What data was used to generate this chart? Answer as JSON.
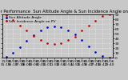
{
  "title": "Solar PV/Inverter Performance  Sun Altitude Angle & Sun Incidence Angle on PV Panels",
  "blue_label": "Sun Altitude Angle",
  "red_label": "Sun Incidence Angle on PV",
  "x_times": [
    "21/06\n05:15",
    "21/06\n06:13",
    "21/06\n07:10",
    "21/06\n08:08",
    "21/06\n09:06",
    "21/06\n10:03",
    "21/06\n11:01",
    "21/06\n11:59",
    "21/06\n12:56",
    "21/06\n13:54",
    "21/06\n14:52",
    "21/06\n15:49",
    "21/06\n16:47",
    "21/06\n17:45",
    "21/06\n18:42",
    "21/06\n19:40"
  ],
  "blue_y": [
    2,
    10,
    22,
    35,
    47,
    57,
    63,
    65,
    63,
    57,
    48,
    36,
    23,
    11,
    3,
    0
  ],
  "red_y": [
    88,
    78,
    67,
    56,
    45,
    36,
    30,
    28,
    30,
    36,
    44,
    56,
    67,
    77,
    87,
    90
  ],
  "ylim": [
    0,
    90
  ],
  "yticks": [
    0,
    10,
    20,
    30,
    40,
    50,
    60,
    70,
    80,
    90
  ],
  "blue_color": "#0000cc",
  "red_color": "#cc0000",
  "bg_color": "#c8c8c8",
  "grid_color": "#ffffff",
  "title_fontsize": 3.8,
  "tick_fontsize": 3.2,
  "legend_fontsize": 3.2,
  "marker_size": 1.8
}
